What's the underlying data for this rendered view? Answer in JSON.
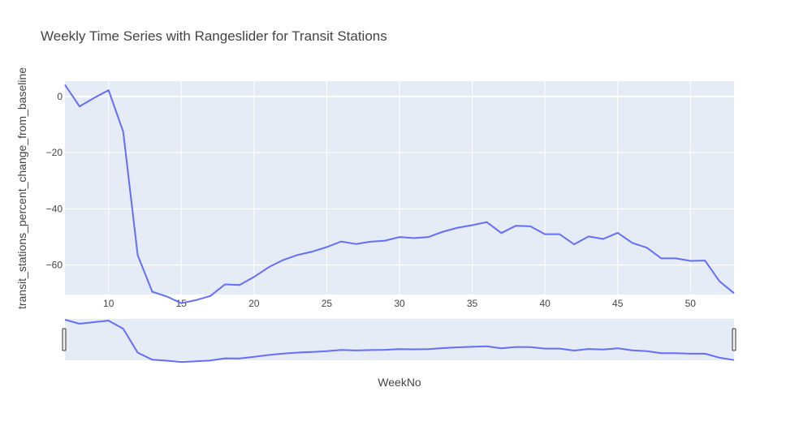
{
  "chart_data": {
    "type": "line",
    "title": "Weekly Time Series with Rangeslider for Transit Stations",
    "xlabel": "WeekNo",
    "ylabel": "transit_stations_percent_change_from_baseline",
    "xlim": [
      7,
      53
    ],
    "ylim": [
      -70.5,
      5.5
    ],
    "x_ticks": [
      10,
      15,
      20,
      25,
      30,
      35,
      40,
      45,
      50
    ],
    "y_ticks": [
      0,
      -20,
      -40,
      -60
    ],
    "x_tick_labels": [
      "10",
      "15",
      "20",
      "25",
      "30",
      "35",
      "40",
      "45",
      "50"
    ],
    "y_tick_labels": [
      "0",
      "−20",
      "−40",
      "−60"
    ],
    "grid": true,
    "rangeslider": true,
    "series": [
      {
        "x": [
          7,
          8,
          9,
          10,
          11,
          12,
          13,
          14,
          15,
          16,
          17,
          18,
          19,
          20,
          21,
          22,
          23,
          24,
          25,
          26,
          27,
          28,
          29,
          30,
          31,
          32,
          33,
          34,
          35,
          36,
          37,
          38,
          39,
          40,
          41,
          42,
          43,
          44,
          45,
          46,
          47,
          48,
          49,
          50,
          51,
          52,
          53
        ],
        "values": [
          4.2,
          -3.5,
          -0.5,
          2.3,
          -12.5,
          -56.5,
          -69.5,
          -71.2,
          -73.6,
          -72.5,
          -71.0,
          -66.9,
          -67.1,
          -64.2,
          -60.8,
          -58.2,
          -56.4,
          -55.2,
          -53.6,
          -51.6,
          -52.5,
          -51.7,
          -51.3,
          -50.0,
          -50.4,
          -50.0,
          -48.1,
          -46.7,
          -45.8,
          -44.7,
          -48.6,
          -46.0,
          -46.2,
          -49.0,
          -49.0,
          -52.6,
          -49.8,
          -50.7,
          -48.5,
          -52.1,
          -53.8,
          -57.6,
          -57.6,
          -58.5,
          -58.4,
          -65.8,
          -70.0
        ],
        "color": "#636efa"
      }
    ]
  },
  "colors": {
    "plot_bg": "#e5ecf6",
    "grid": "#ffffff",
    "line": "#636efa",
    "text": "#444444"
  }
}
